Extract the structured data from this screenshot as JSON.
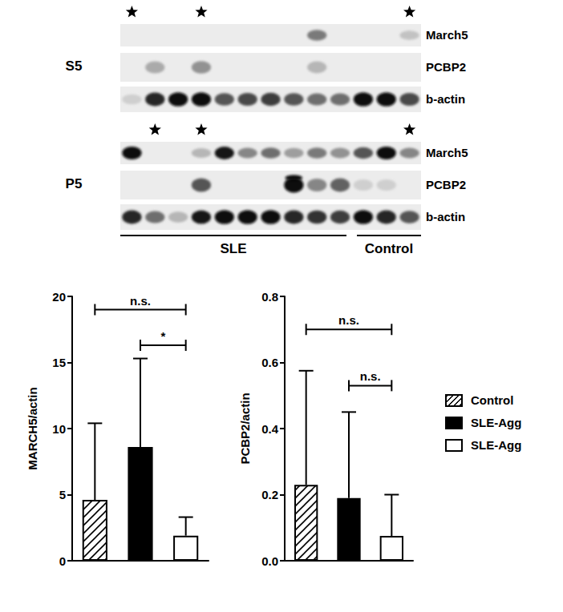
{
  "blot": {
    "panels": [
      {
        "label": "S5",
        "rows": [
          "March5",
          "PCBP2",
          "b-actin"
        ]
      },
      {
        "label": "P5",
        "rows": [
          "March5",
          "PCBP2",
          "b-actin"
        ]
      }
    ],
    "groups": [
      "SLE",
      "Control"
    ]
  },
  "chart_data": [
    {
      "type": "bar",
      "y_label": "MARCH5/actin",
      "ylim": [
        0,
        20
      ],
      "yticks": [
        0,
        5,
        10,
        15,
        20
      ],
      "tick_labels": "y",
      "series": [
        {
          "name": "Control",
          "color": "#ffffff",
          "marker": "hatch",
          "values": [
            4.6
          ],
          "errors": [
            5.8
          ]
        },
        {
          "name": "SLE-Agg",
          "color": "#000000",
          "values": [
            8.6
          ],
          "errors": [
            6.7
          ]
        },
        {
          "name": "SLE-Agg",
          "color": "#ffffff",
          "values": [
            1.9
          ],
          "errors": [
            1.4
          ]
        }
      ],
      "annotations": [
        {
          "label": "n.s.",
          "from": 0,
          "to": 2,
          "y": 19
        },
        {
          "label": "*",
          "from": 1,
          "to": 2,
          "y": 16.3
        }
      ]
    },
    {
      "type": "bar",
      "y_label": "PCBP2/actin",
      "ylim": [
        0,
        0.8
      ],
      "yticks": [
        {
          "value": 0,
          "label": "0.0"
        },
        {
          "value": 0.2,
          "label": "0.2"
        },
        {
          "value": 0.4,
          "label": "0.4"
        },
        {
          "value": 0.6,
          "label": "0.6"
        },
        {
          "value": 0.8,
          "label": "0.8"
        }
      ],
      "tick_labels": "y",
      "legend": "right",
      "series": [
        {
          "name": "Control",
          "color": "#ffffff",
          "marker": "hatch",
          "values": [
            0.23
          ],
          "errors": [
            0.345
          ]
        },
        {
          "name": "SLE-Agg",
          "color": "#000000",
          "values": [
            0.19
          ],
          "errors": [
            0.26
          ]
        },
        {
          "name": "SLE-Agg",
          "color": "#ffffff",
          "values": [
            0.075
          ],
          "errors": [
            0.125
          ]
        }
      ],
      "annotations": [
        {
          "label": "n.s.",
          "from": 0,
          "to": 2,
          "y": 0.7
        },
        {
          "label": "n.s.",
          "from": 1,
          "to": 2,
          "y": 0.53
        }
      ]
    }
  ]
}
